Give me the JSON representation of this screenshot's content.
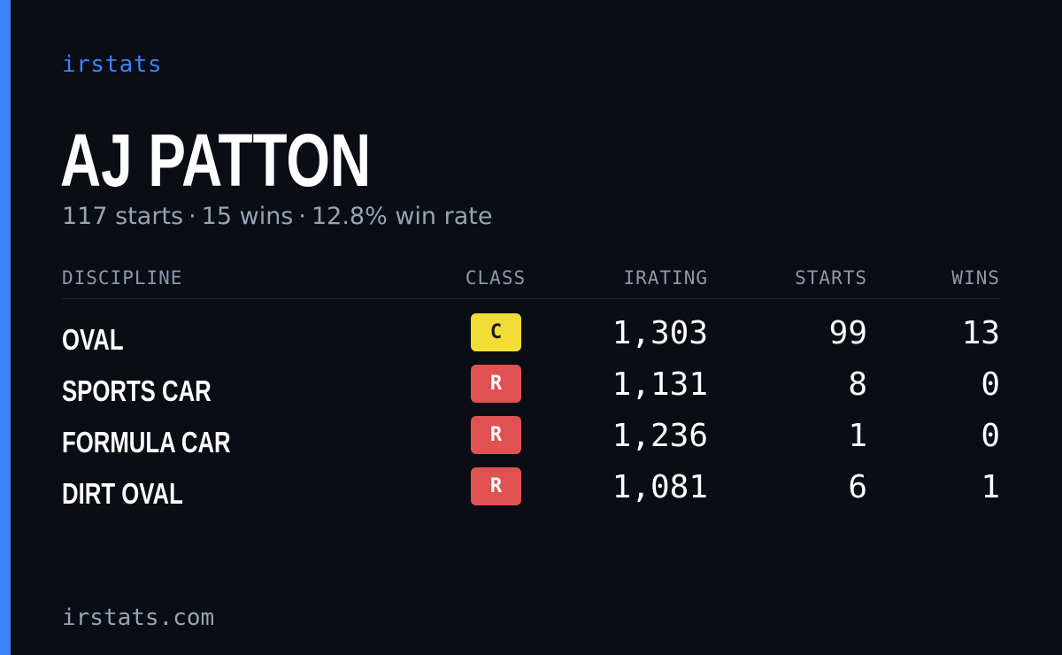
{
  "colors": {
    "accent": "#3b82f6",
    "background": "#0a0d14",
    "class_c": "#f2dd37",
    "class_c_text": "#1a1a1a",
    "class_r": "#e05252",
    "class_r_text": "#ffffff"
  },
  "brand": "irstats",
  "driver": {
    "name": "AJ PATTON",
    "starts_text": "117 starts",
    "wins_text": "15 wins",
    "win_rate_text": "12.8% win rate",
    "separator": "·"
  },
  "table": {
    "headers": {
      "discipline": "DISCIPLINE",
      "class": "CLASS",
      "irating": "IRATING",
      "starts": "STARTS",
      "wins": "WINS"
    },
    "rows": [
      {
        "discipline": "OVAL",
        "class": "C",
        "class_color": "#f2dd37",
        "class_text_color": "#1a1a1a",
        "irating": "1,303",
        "starts": "99",
        "wins": "13"
      },
      {
        "discipline": "SPORTS CAR",
        "class": "R",
        "class_color": "#e05252",
        "class_text_color": "#ffffff",
        "irating": "1,131",
        "starts": "8",
        "wins": "0"
      },
      {
        "discipline": "FORMULA CAR",
        "class": "R",
        "class_color": "#e05252",
        "class_text_color": "#ffffff",
        "irating": "1,236",
        "starts": "1",
        "wins": "0"
      },
      {
        "discipline": "DIRT OVAL",
        "class": "R",
        "class_color": "#e05252",
        "class_text_color": "#ffffff",
        "irating": "1,081",
        "starts": "6",
        "wins": "1"
      }
    ]
  },
  "footer": {
    "site": "irstats.com"
  }
}
